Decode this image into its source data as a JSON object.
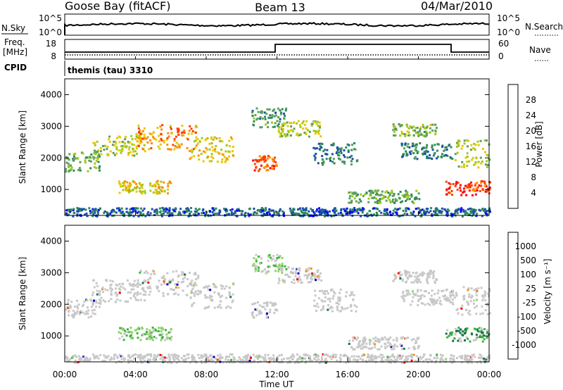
{
  "header": {
    "site": "Goose Bay (fitACF)",
    "beam": "Beam 13",
    "date": "04/Mar/2010"
  },
  "top_panels": {
    "nsky_label": "N.Sky",
    "nsky_ticks": [
      "10^5",
      "10^0"
    ],
    "nsky_right_ticks": [
      "10^5",
      "10^0"
    ],
    "nsearch_label": "N.Search",
    "freq_label": "Freq.",
    "freq_unit": "[MHz]",
    "freq_ticks": [
      "18",
      "8"
    ],
    "nave_label": "Nave",
    "nave_ticks": [
      "60",
      "0"
    ],
    "cpid_label": "CPID",
    "cpid_value": "themis (tau) 3310"
  },
  "x_axis": {
    "label": "Time UT",
    "ticks": [
      "00:00",
      "04:00",
      "08:00",
      "12:00",
      "16:00",
      "20:00",
      "00:00"
    ]
  },
  "colors": {
    "power_scale": [
      "#0000ff",
      "#1a4fa8",
      "#2e8b57",
      "#5aa05a",
      "#a0c81e",
      "#e6c800",
      "#ff8c00",
      "#ff4000",
      "#ff0000"
    ],
    "velocity_scale": [
      "#ff0000",
      "#ff5000",
      "#ff8c00",
      "#c8c8c8",
      "#c8c8c8",
      "#8fd46a",
      "#3cb43c",
      "#1a6e50",
      "#0000c8"
    ]
  },
  "chart_data": [
    {
      "type": "heatmap",
      "name": "power",
      "xlabel": "Time UT",
      "ylabel": "Slant Range [km]",
      "xlim_hours": [
        0,
        24
      ],
      "ylim": [
        180,
        4500
      ],
      "yticks": [
        "4000",
        "3000",
        "2000",
        "1000"
      ],
      "colorbar": {
        "label": "Power [dB]",
        "ticks": [
          "28",
          "24",
          "20",
          "16",
          "12",
          "8",
          "4"
        ],
        "range": [
          0,
          30
        ]
      },
      "bands": [
        {
          "t0": 0.0,
          "t1": 2.0,
          "r0": 1600,
          "r1": 2200,
          "level": 12
        },
        {
          "t0": 1.5,
          "t1": 4.5,
          "r0": 2100,
          "r1": 2800,
          "level": 16
        },
        {
          "t0": 4.0,
          "t1": 7.5,
          "r0": 2300,
          "r1": 3100,
          "level": 22
        },
        {
          "t0": 7.0,
          "t1": 9.5,
          "r0": 1900,
          "r1": 2700,
          "level": 18
        },
        {
          "t0": 3.0,
          "t1": 6.0,
          "r0": 900,
          "r1": 1300,
          "level": 18
        },
        {
          "t0": 10.5,
          "t1": 12.0,
          "r0": 1600,
          "r1": 2100,
          "level": 24
        },
        {
          "t0": 10.5,
          "t1": 12.5,
          "r0": 3000,
          "r1": 3600,
          "level": 10
        },
        {
          "t0": 12.0,
          "t1": 14.5,
          "r0": 2700,
          "r1": 3200,
          "level": 16
        },
        {
          "t0": 14.0,
          "t1": 16.5,
          "r0": 1800,
          "r1": 2500,
          "level": 8
        },
        {
          "t0": 16.0,
          "t1": 20.0,
          "r0": 600,
          "r1": 1000,
          "level": 12
        },
        {
          "t0": 18.5,
          "t1": 21.0,
          "r0": 2700,
          "r1": 3100,
          "level": 14
        },
        {
          "t0": 19.0,
          "t1": 22.0,
          "r0": 2000,
          "r1": 2500,
          "level": 8
        },
        {
          "t0": 21.5,
          "t1": 24.0,
          "r0": 850,
          "r1": 1300,
          "level": 26
        },
        {
          "t0": 22.0,
          "t1": 24.0,
          "r0": 1700,
          "r1": 2600,
          "level": 16
        },
        {
          "t0": 0.0,
          "t1": 24.0,
          "r0": 180,
          "r1": 450,
          "level": 6
        }
      ]
    },
    {
      "type": "heatmap",
      "name": "velocity",
      "xlabel": "Time UT",
      "ylabel": "Slant Range [km]",
      "xlim_hours": [
        0,
        24
      ],
      "ylim": [
        180,
        4500
      ],
      "yticks": [
        "4000",
        "3000",
        "2000",
        "1000"
      ],
      "colorbar": {
        "label": "Velocity [m s⁻¹]",
        "ticks": [
          "1000",
          "500",
          "100",
          "25",
          "-25",
          "-100",
          "-500",
          "-1000"
        ],
        "range": [
          -1000,
          1000
        ]
      },
      "bands": [
        {
          "t0": 0.0,
          "t1": 2.0,
          "r0": 1600,
          "r1": 2200,
          "level": 0
        },
        {
          "t0": 1.5,
          "t1": 4.5,
          "r0": 2100,
          "r1": 2800,
          "level": 0
        },
        {
          "t0": 4.0,
          "t1": 7.5,
          "r0": 2300,
          "r1": 3100,
          "level": 0
        },
        {
          "t0": 7.0,
          "t1": 9.5,
          "r0": 1900,
          "r1": 2700,
          "level": 0
        },
        {
          "t0": 3.0,
          "t1": 6.0,
          "r0": 900,
          "r1": 1300,
          "level": 120
        },
        {
          "t0": 10.5,
          "t1": 12.0,
          "r0": 1600,
          "r1": 2100,
          "level": 0
        },
        {
          "t0": 10.5,
          "t1": 12.5,
          "r0": 3000,
          "r1": 3600,
          "level": 150
        },
        {
          "t0": 12.0,
          "t1": 14.5,
          "r0": 2700,
          "r1": 3200,
          "level": 0
        },
        {
          "t0": 14.0,
          "t1": 16.5,
          "r0": 1800,
          "r1": 2500,
          "level": 0
        },
        {
          "t0": 16.0,
          "t1": 20.0,
          "r0": 600,
          "r1": 1000,
          "level": 0
        },
        {
          "t0": 18.5,
          "t1": 21.0,
          "r0": 2700,
          "r1": 3100,
          "level": 0
        },
        {
          "t0": 19.0,
          "t1": 22.0,
          "r0": 2000,
          "r1": 2500,
          "level": 0
        },
        {
          "t0": 21.5,
          "t1": 24.0,
          "r0": 850,
          "r1": 1300,
          "level": 300
        },
        {
          "t0": 22.0,
          "t1": 24.0,
          "r0": 1700,
          "r1": 2600,
          "level": 0
        },
        {
          "t0": 0.0,
          "t1": 24.0,
          "r0": 180,
          "r1": 450,
          "level": 0
        }
      ]
    }
  ]
}
